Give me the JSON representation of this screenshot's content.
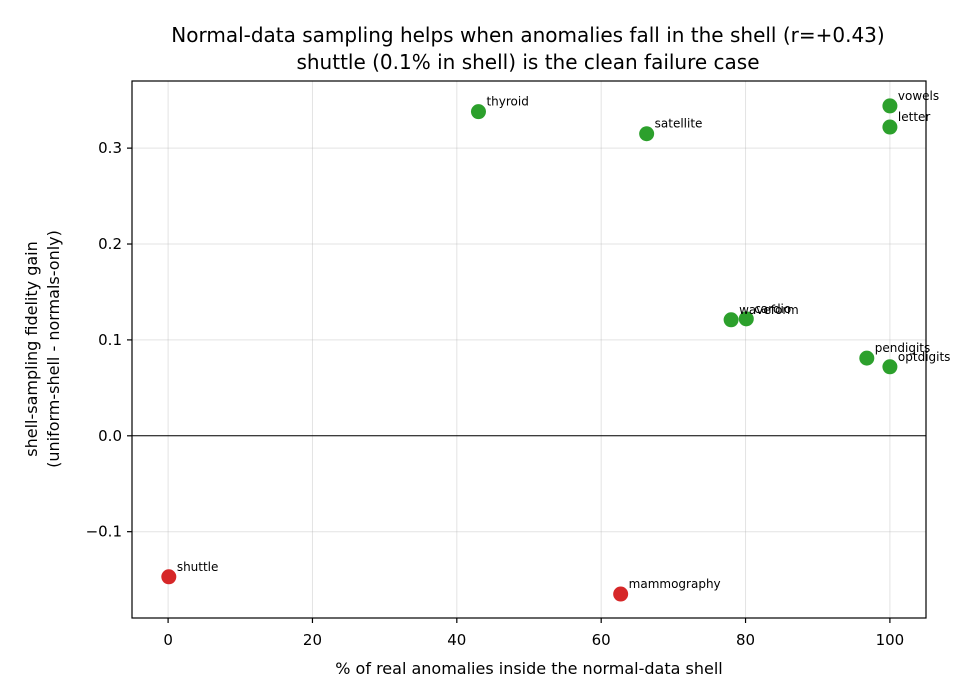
{
  "chart_data": {
    "type": "scatter",
    "title": "Normal-data sampling helps when anomalies fall in the shell (r=+0.43)",
    "subtitle": "shuttle (0.1% in shell) is the clean failure case",
    "xlabel": "% of real anomalies inside the normal-data shell",
    "ylabel_line1": "shell-sampling fidelity gain",
    "ylabel_line2": "(uniform-shell - normals-only)",
    "xlim": [
      -5,
      105
    ],
    "ylim": [
      -0.19,
      0.37
    ],
    "xticks": [
      0,
      20,
      40,
      60,
      80,
      100
    ],
    "yticks": [
      -0.1,
      0.0,
      0.1,
      0.2,
      0.3
    ],
    "xtick_labels": [
      "0",
      "20",
      "40",
      "60",
      "80",
      "100"
    ],
    "ytick_labels": [
      "−0.1",
      "0.0",
      "0.1",
      "0.2",
      "0.3"
    ],
    "grid": true,
    "zero_line": true,
    "colors": {
      "positive": "#2ca02c",
      "negative": "#d62728"
    },
    "points": [
      {
        "label": "thyroid",
        "x": 43,
        "y": 0.338,
        "sign": "positive"
      },
      {
        "label": "satellite",
        "x": 66.3,
        "y": 0.315,
        "sign": "positive"
      },
      {
        "label": "vowels",
        "x": 100,
        "y": 0.344,
        "sign": "positive"
      },
      {
        "label": "letter",
        "x": 100,
        "y": 0.322,
        "sign": "positive"
      },
      {
        "label": "waveform",
        "x": 78,
        "y": 0.121,
        "sign": "positive"
      },
      {
        "label": "cardio",
        "x": 80.1,
        "y": 0.122,
        "sign": "positive"
      },
      {
        "label": "pendigits",
        "x": 96.8,
        "y": 0.081,
        "sign": "positive"
      },
      {
        "label": "optdigits",
        "x": 100,
        "y": 0.072,
        "sign": "positive"
      },
      {
        "label": "shuttle",
        "x": 0.1,
        "y": -0.147,
        "sign": "negative"
      },
      {
        "label": "mammography",
        "x": 62.7,
        "y": -0.165,
        "sign": "negative"
      }
    ]
  }
}
